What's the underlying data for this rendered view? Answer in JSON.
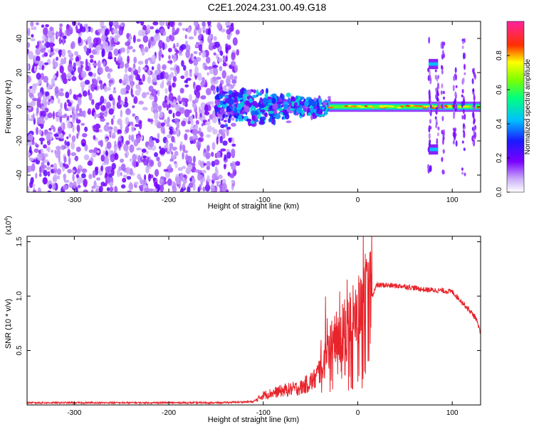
{
  "title": "C2E1.2024.231.00.49.G18",
  "chart_data": [
    {
      "type": "heatmap",
      "xlabel": "Height of straight line (km)",
      "ylabel": "Frequency (Hz)",
      "xlim": [
        -350,
        130
      ],
      "ylim": [
        -50,
        50
      ],
      "xticks": [
        -300,
        -200,
        -100,
        0,
        100
      ],
      "yticks": [
        -40,
        -20,
        0,
        20,
        40
      ],
      "colorbar": {
        "label": "Normalized spectral amplitude",
        "range": [
          0,
          1
        ],
        "ticks": [
          "0.0",
          "0.2",
          "0.4",
          "0.6",
          "0.8"
        ],
        "colormap": "rainbow (white, violet, blue, cyan, green, yellow, red, magenta)"
      },
      "regions": [
        {
          "name": "noise",
          "x": [
            -350,
            -127
          ],
          "y": [
            -50,
            50
          ],
          "amplitude": 0.1
        },
        {
          "name": "transition",
          "x": [
            -150,
            -30
          ],
          "y": [
            -22,
            18
          ],
          "amplitude": 0.35
        },
        {
          "name": "carrier",
          "x": [
            -30,
            130
          ],
          "y": [
            -3,
            3
          ],
          "amplitude": 0.8
        },
        {
          "name": "sidebands",
          "x": [
            75,
            85
          ],
          "y": [
            22,
            28
          ],
          "amplitude": 0.45
        },
        {
          "name": "sidebands",
          "x": [
            75,
            85
          ],
          "y": [
            -28,
            -22
          ],
          "amplitude": 0.45
        }
      ],
      "grid": false
    },
    {
      "type": "line",
      "xlabel": "Height of straight line (km)",
      "ylabel": "SNR (10 * v/v)",
      "yscale_label": "(x10^4)",
      "xlim": [
        -350,
        130
      ],
      "ylim": [
        0,
        1.55
      ],
      "xticks": [
        -300,
        -200,
        -100,
        0,
        100
      ],
      "yticks": [
        0.5,
        1.0,
        1.5
      ],
      "ytick_labels": [
        "0.5",
        "1.0",
        "1.5"
      ],
      "color": "#e8232a",
      "series": [
        {
          "x": [
            -350,
            -250,
            -150,
            -110,
            -100,
            -80,
            -60,
            -45,
            -30,
            -20,
            -10,
            0,
            5,
            10,
            15,
            20,
            30,
            50,
            70,
            90,
            100,
            110,
            120,
            125,
            130
          ],
          "values": [
            0.02,
            0.02,
            0.02,
            0.03,
            0.09,
            0.13,
            0.16,
            0.24,
            0.5,
            0.68,
            0.72,
            0.8,
            0.9,
            0.96,
            1.0,
            1.1,
            1.1,
            1.09,
            1.06,
            1.05,
            1.04,
            0.95,
            0.85,
            0.8,
            0.65
          ]
        }
      ],
      "grid": false
    }
  ]
}
